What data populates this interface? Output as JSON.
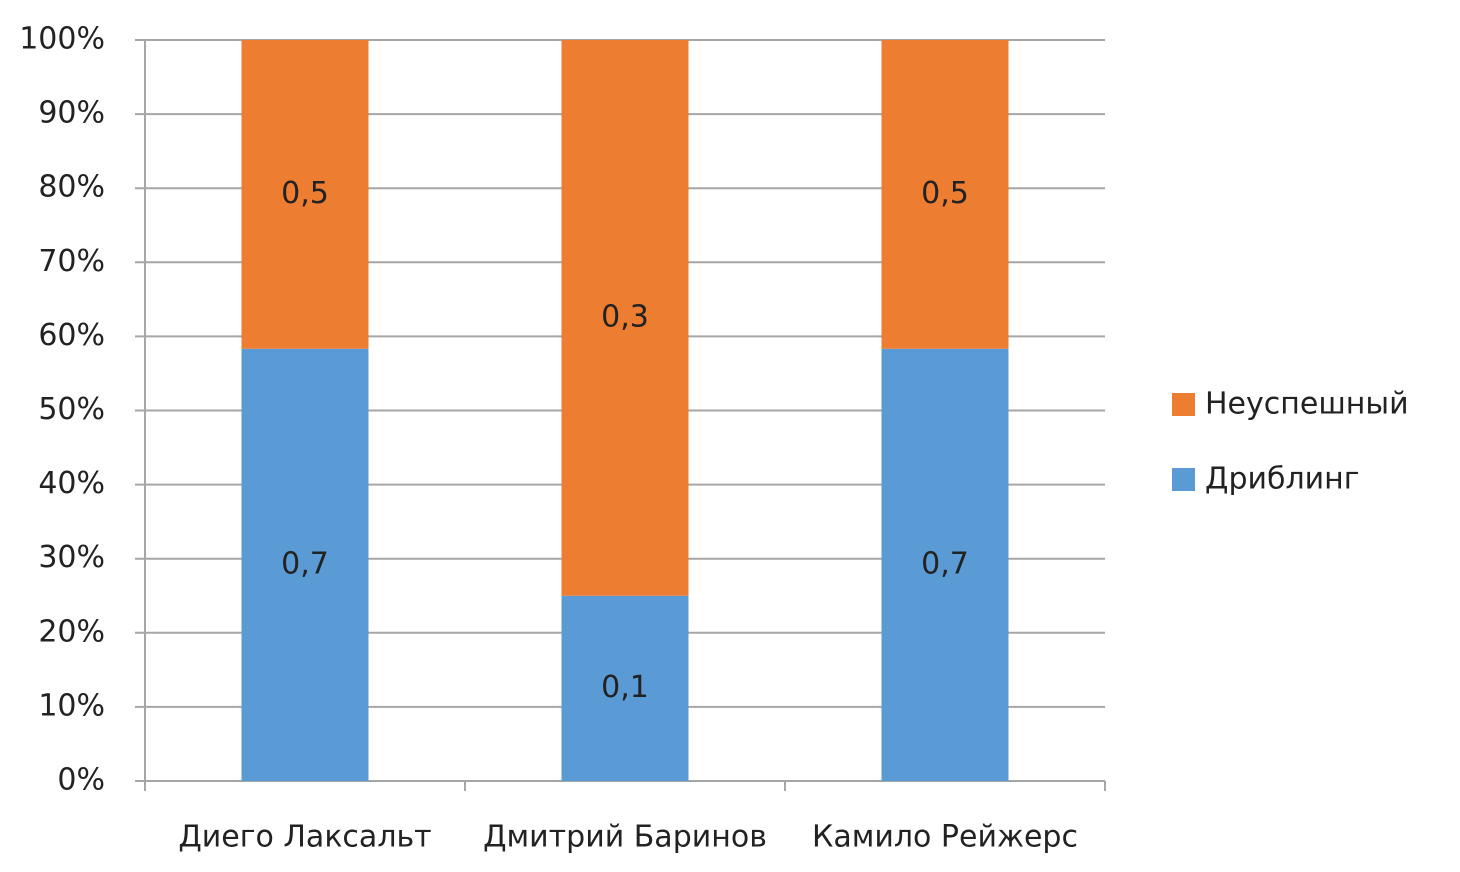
{
  "chart_data": {
    "type": "bar",
    "stacking": "percent",
    "categories": [
      "Диего Лаксальт",
      "Дмитрий Баринов",
      "Камило Рейжерс"
    ],
    "series": [
      {
        "name": "Дриблинг",
        "color": "#5b9bd5",
        "values": [
          0.7,
          0.1,
          0.7
        ],
        "value_labels": [
          "0,7",
          "0,1",
          "0,7"
        ]
      },
      {
        "name": "Неуспешный",
        "color": "#ed7d31",
        "values": [
          0.5,
          0.3,
          0.5
        ],
        "value_labels": [
          "0,5",
          "0,3",
          "0,5"
        ]
      }
    ],
    "ylim": [
      0,
      100
    ],
    "yticks": [
      {
        "value": 0,
        "label": "0%"
      },
      {
        "value": 10,
        "label": "10%"
      },
      {
        "value": 20,
        "label": "20%"
      },
      {
        "value": 30,
        "label": "30%"
      },
      {
        "value": 40,
        "label": "40%"
      },
      {
        "value": 50,
        "label": "50%"
      },
      {
        "value": 60,
        "label": "60%"
      },
      {
        "value": 70,
        "label": "70%"
      },
      {
        "value": 80,
        "label": "80%"
      },
      {
        "value": 90,
        "label": "90%"
      },
      {
        "value": 100,
        "label": "100%"
      }
    ],
    "grid": true,
    "legend": "right"
  }
}
